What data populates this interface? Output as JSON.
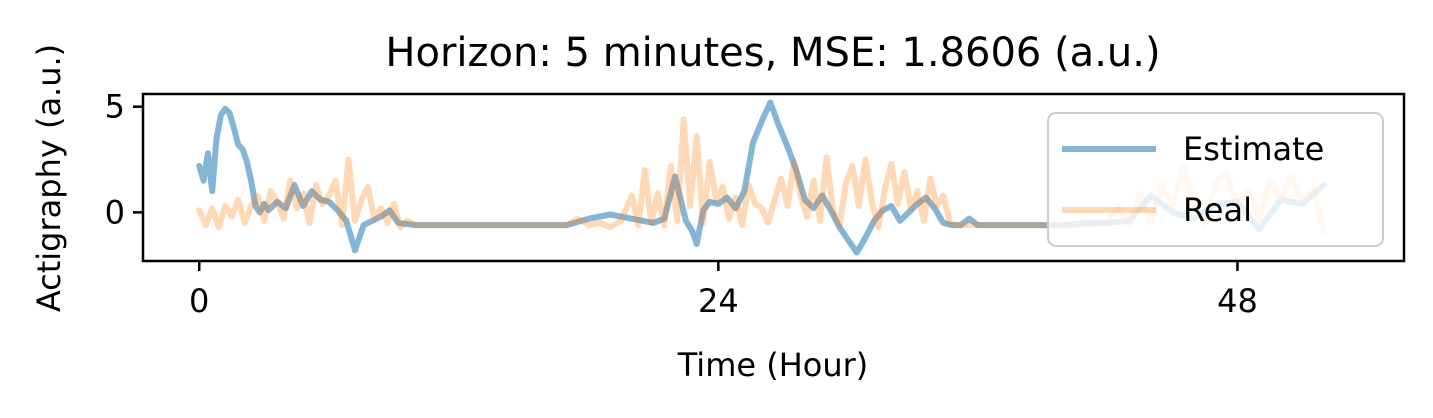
{
  "chart_data": {
    "type": "line",
    "title": "Horizon: 5 minutes, MSE: 1.8606 (a.u.)",
    "xlabel": "Time (Hour)",
    "ylabel": "Actigraphy (a.u.)",
    "xlim": [
      -2.6,
      55.7
    ],
    "ylim": [
      -2.3,
      5.6
    ],
    "xticks": [
      0,
      24,
      48
    ],
    "xtick_labels": [
      "0",
      "24",
      "48"
    ],
    "yticks": [
      0,
      5
    ],
    "ytick_labels": [
      "0",
      "5"
    ],
    "grid": false,
    "legend_position": "upper right",
    "series": [
      {
        "name": "Estimate",
        "color": "#1f77b4",
        "alpha": 0.55,
        "x": [
          0,
          0.2,
          0.4,
          0.6,
          0.8,
          1.0,
          1.2,
          1.4,
          1.6,
          1.8,
          2.0,
          2.2,
          2.4,
          2.6,
          2.8,
          3.0,
          3.2,
          3.6,
          4.0,
          4.4,
          4.8,
          5.2,
          5.6,
          6.0,
          6.4,
          6.8,
          7.2,
          7.6,
          8.0,
          8.4,
          8.8,
          9.2,
          10,
          11,
          12,
          13,
          14,
          15,
          16,
          17,
          18,
          19,
          20,
          21,
          21.5,
          22,
          22.5,
          22.8,
          23,
          23.3,
          23.6,
          24,
          24.4,
          24.8,
          25.2,
          25.6,
          26.0,
          26.4,
          26.8,
          27.2,
          27.6,
          28.0,
          28.4,
          28.8,
          29.2,
          29.6,
          30.0,
          30.4,
          30.8,
          31.2,
          31.6,
          32.0,
          32.4,
          32.8,
          33.2,
          33.6,
          34.0,
          34.4,
          34.8,
          35.2,
          35.6,
          36,
          37,
          38,
          39,
          40,
          41,
          42,
          43,
          44,
          45,
          46,
          47,
          48,
          49,
          50,
          51,
          52
        ],
        "y": [
          2.2,
          1.5,
          2.8,
          1.0,
          3.5,
          4.6,
          4.9,
          4.7,
          4.0,
          3.2,
          3.0,
          2.4,
          1.5,
          0.3,
          0.0,
          0.4,
          0.1,
          0.5,
          0.2,
          1.3,
          0.3,
          1.0,
          0.6,
          0.5,
          0.1,
          -0.4,
          -1.8,
          -0.6,
          -0.4,
          -0.2,
          0.1,
          -0.5,
          -0.6,
          -0.6,
          -0.6,
          -0.6,
          -0.6,
          -0.6,
          -0.6,
          -0.6,
          -0.3,
          -0.1,
          -0.3,
          -0.5,
          -0.3,
          1.7,
          -0.4,
          -0.9,
          -1.5,
          0.1,
          0.5,
          0.4,
          0.7,
          0.2,
          1.0,
          3.3,
          4.3,
          5.2,
          4.1,
          3.1,
          2.0,
          0.6,
          0.2,
          0.8,
          0.1,
          -0.7,
          -1.3,
          -1.9,
          -1.2,
          -0.4,
          0.1,
          0.3,
          -0.4,
          0.0,
          0.4,
          0.7,
          0.2,
          -0.5,
          -0.6,
          -0.6,
          -0.3,
          -0.6,
          -0.6,
          -0.6,
          -0.6,
          -0.6,
          -0.5,
          -0.5,
          -0.4,
          0.8,
          0.0,
          -0.3,
          0.4,
          0.5,
          -0.8,
          0.6,
          0.4,
          1.3
        ]
      },
      {
        "name": "Real",
        "color": "#ff7f0e",
        "alpha": 0.3,
        "x": [
          0,
          0.3,
          0.6,
          0.9,
          1.2,
          1.5,
          1.8,
          2.1,
          2.4,
          2.7,
          3.0,
          3.3,
          3.6,
          3.9,
          4.2,
          4.5,
          4.8,
          5.1,
          5.4,
          5.7,
          6.0,
          6.3,
          6.6,
          6.9,
          7.2,
          7.5,
          7.8,
          8.1,
          8.4,
          8.7,
          9.0,
          9.3,
          9.6,
          10,
          11,
          12,
          13,
          14,
          15,
          16,
          17,
          17.5,
          18,
          18.5,
          19,
          19.5,
          20,
          20.3,
          20.6,
          20.9,
          21.2,
          21.5,
          21.8,
          22.1,
          22.4,
          22.7,
          23.0,
          23.3,
          23.6,
          23.9,
          24.2,
          24.5,
          24.8,
          25.1,
          25.4,
          25.7,
          26.0,
          26.3,
          26.6,
          26.9,
          27.2,
          27.5,
          27.8,
          28.1,
          28.4,
          28.7,
          29.0,
          29.3,
          29.6,
          29.9,
          30.2,
          30.5,
          30.8,
          31.1,
          31.4,
          31.7,
          32.0,
          32.3,
          32.6,
          32.9,
          33.2,
          33.5,
          33.8,
          34.1,
          34.4,
          34.7,
          35,
          36,
          37,
          38,
          39,
          40,
          41,
          42,
          42.5,
          43,
          43.5,
          44,
          44.5,
          45,
          45.5,
          46,
          46.5,
          47,
          47.5,
          48,
          48.5,
          49,
          49.5,
          50,
          50.5,
          51,
          51.5,
          52
        ],
        "y": [
          0.1,
          -0.6,
          0.2,
          -0.7,
          0.3,
          -0.2,
          0.6,
          -0.5,
          0.3,
          0.8,
          -0.4,
          1.0,
          0.5,
          -0.3,
          1.5,
          0.2,
          0.9,
          -0.5,
          1.3,
          0.4,
          0.8,
          1.5,
          -0.6,
          2.5,
          -0.4,
          0.6,
          1.2,
          -0.3,
          0.2,
          -0.5,
          0.4,
          -0.7,
          -0.4,
          -0.6,
          -0.6,
          -0.6,
          -0.6,
          -0.6,
          -0.6,
          -0.6,
          -0.6,
          -0.3,
          -0.6,
          -0.5,
          -0.7,
          -0.4,
          0.8,
          -0.6,
          2.0,
          -0.5,
          0.9,
          -0.6,
          2.2,
          -0.4,
          4.4,
          0.3,
          3.6,
          -0.5,
          2.4,
          0.6,
          1.2,
          -0.3,
          0.7,
          -0.6,
          1.3,
          0.4,
          0.2,
          -0.5,
          0.6,
          1.6,
          0.3,
          2.4,
          0.8,
          -0.2,
          1.5,
          -0.4,
          2.6,
          0.1,
          -0.6,
          1.4,
          2.2,
          0.3,
          2.5,
          0.5,
          -0.7,
          1.1,
          2.3,
          0.4,
          1.9,
          0.2,
          1.0,
          -0.4,
          1.6,
          0.3,
          0.8,
          -0.5,
          -0.6,
          -0.6,
          -0.6,
          -0.6,
          -0.6,
          -0.6,
          -0.6,
          -0.5,
          0.3,
          -0.6,
          0.9,
          -0.5,
          1.3,
          0.2,
          2.2,
          0.4,
          -0.6,
          1.4,
          1.9,
          0.3,
          1.1,
          -0.4,
          1.5,
          0.6,
          1.7,
          0.5,
          1.2,
          -0.9
        ]
      }
    ]
  }
}
